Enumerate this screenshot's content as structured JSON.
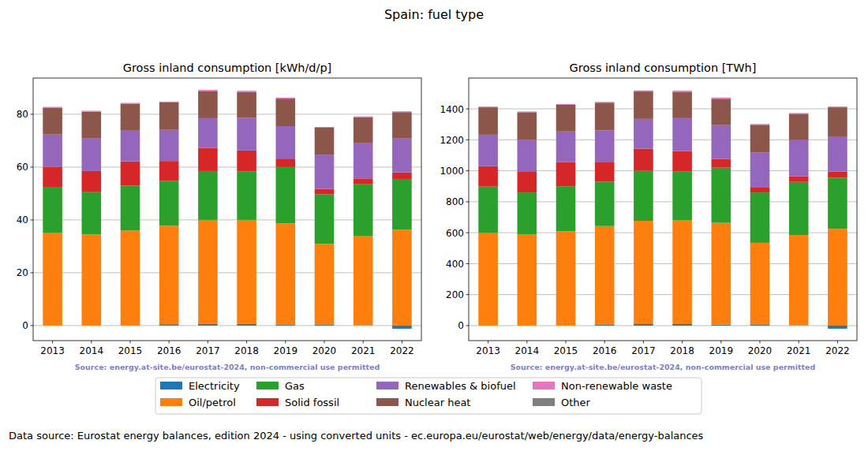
{
  "title": "Spain: fuel type",
  "footer": "Data source: Eurostat energy balances, edition 2024 - using converted units - ec.europa.eu/eurostat/web/energy/data/energy-balances",
  "chart_data": [
    {
      "type": "bar",
      "stacked": true,
      "grid": true,
      "legend": "bottom",
      "title": "Gross inland consumption [kWh/d/p]",
      "annotations": [
        "Source: energy.at-site.be/eurostat-2024, non-commercial use permitted"
      ],
      "categories": [
        "2013",
        "2014",
        "2015",
        "2016",
        "2017",
        "2018",
        "2019",
        "2020",
        "2021",
        "2022"
      ],
      "ylim": [
        -5.7,
        93.7
      ],
      "yticks": [
        0,
        20,
        40,
        60,
        80
      ],
      "series": [
        {
          "name": "Electricity",
          "color": "#1f77b4",
          "values": [
            0,
            0,
            0,
            0.5,
            0.6,
            0.6,
            0.3,
            0.3,
            0.1,
            -1.2
          ]
        },
        {
          "name": "Oil/petrol",
          "color": "#ff7f0e",
          "values": [
            35,
            34.5,
            36,
            37.3,
            39.4,
            39.4,
            38.4,
            30.6,
            33.7,
            36.3
          ]
        },
        {
          "name": "Gas",
          "color": "#2ca02c",
          "values": [
            17.5,
            16,
            17,
            17,
            18.5,
            18.3,
            21.3,
            18.8,
            19.7,
            19.2
          ]
        },
        {
          "name": "Solid fossil",
          "color": "#d62728",
          "values": [
            7.5,
            8,
            9.2,
            7.5,
            8.7,
            8,
            3.2,
            2,
            2.2,
            2.5
          ]
        },
        {
          "name": "Renewables & biofuel",
          "color": "#9467bd",
          "values": [
            12.3,
            12.3,
            11.8,
            11.8,
            11.3,
            12.3,
            12.3,
            13,
            13.5,
            12.8
          ]
        },
        {
          "name": "Nuclear heat",
          "color": "#8c564b",
          "values": [
            10.2,
            10.2,
            10,
            10.4,
            10.3,
            9.8,
            10.4,
            10.2,
            9.7,
            10
          ]
        },
        {
          "name": "Non-renewable waste",
          "color": "#e377c2",
          "values": [
            0.3,
            0.3,
            0.3,
            0.3,
            0.4,
            0.5,
            0.4,
            0.3,
            0.3,
            0.3
          ]
        },
        {
          "name": "Other",
          "color": "#7f7f7f",
          "values": [
            0,
            0,
            0,
            0,
            0,
            0,
            0,
            0,
            0,
            0
          ]
        }
      ]
    },
    {
      "type": "bar",
      "stacked": true,
      "grid": true,
      "title": "Gross inland consumption [TWh]",
      "annotations": [
        "Source: energy.at-site.be/eurostat-2024, non-commercial use permitted"
      ],
      "categories": [
        "2013",
        "2014",
        "2015",
        "2016",
        "2017",
        "2018",
        "2019",
        "2020",
        "2021",
        "2022"
      ],
      "ylim": [
        -97,
        1599
      ],
      "yticks": [
        0,
        200,
        400,
        600,
        800,
        1000,
        1200,
        1400
      ],
      "series": [
        {
          "name": "Electricity",
          "color": "#1f77b4",
          "values": [
            0,
            0,
            0,
            8,
            10,
            10,
            6,
            5,
            2,
            -20
          ]
        },
        {
          "name": "Oil/petrol",
          "color": "#ff7f0e",
          "values": [
            598,
            588,
            610,
            635,
            667,
            672,
            658,
            530,
            583,
            625
          ]
        },
        {
          "name": "Gas",
          "color": "#2ca02c",
          "values": [
            300,
            272,
            290,
            287,
            323,
            315,
            356,
            325,
            343,
            330
          ]
        },
        {
          "name": "Solid fossil",
          "color": "#d62728",
          "values": [
            132,
            137,
            157,
            128,
            143,
            131,
            57,
            35,
            37,
            40
          ]
        },
        {
          "name": "Renewables & biofuel",
          "color": "#9467bd",
          "values": [
            203,
            203,
            197,
            202,
            192,
            212,
            218,
            222,
            233,
            227
          ]
        },
        {
          "name": "Nuclear heat",
          "color": "#8c564b",
          "values": [
            177,
            178,
            172,
            180,
            177,
            170,
            170,
            180,
            170,
            188
          ]
        },
        {
          "name": "Non-renewable waste",
          "color": "#e377c2",
          "values": [
            5,
            5,
            5,
            5,
            7,
            8,
            8,
            5,
            5,
            5
          ]
        },
        {
          "name": "Other",
          "color": "#7f7f7f",
          "values": [
            0,
            0,
            0,
            0,
            0,
            0,
            0,
            0,
            0,
            0
          ]
        }
      ]
    }
  ]
}
